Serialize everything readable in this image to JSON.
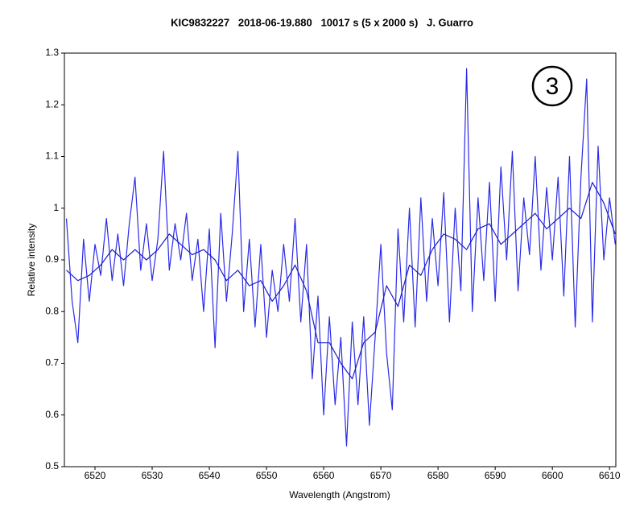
{
  "chart_data": {
    "type": "line",
    "title": "KIC9832227   2018-06-19.880   10017 s (5 x 2000 s)   J. Guarro",
    "x_label": "Wavelength (Angstrom)",
    "y_label": "Relative intensity",
    "annotation": "3",
    "xlim": [
      6514.65,
      6611.1
    ],
    "ylim": [
      0.5,
      1.3
    ],
    "xticks": [
      6520,
      6530,
      6540,
      6550,
      6560,
      6570,
      6580,
      6590,
      6600,
      6610
    ],
    "yticks": [
      0.5,
      0.6,
      0.7,
      0.8,
      0.9,
      1,
      1.1,
      1.2,
      1.3
    ],
    "grid": false,
    "series": [
      {
        "color": "#2a2ae8",
        "x": [
          6515,
          6516,
          6517,
          6518,
          6519,
          6520,
          6521,
          6522,
          6523,
          6524,
          6525,
          6526,
          6527,
          6528,
          6529,
          6530,
          6531,
          6532,
          6533,
          6534,
          6535,
          6536,
          6537,
          6538,
          6539,
          6540,
          6541,
          6542,
          6543,
          6544,
          6545,
          6546,
          6547,
          6548,
          6549,
          6550,
          6551,
          6552,
          6553,
          6554,
          6555,
          6556,
          6557,
          6558,
          6559,
          6560,
          6561,
          6562,
          6563,
          6564,
          6565,
          6566,
          6567,
          6568,
          6569,
          6570,
          6571,
          6572,
          6573,
          6574,
          6575,
          6576,
          6577,
          6578,
          6579,
          6580,
          6581,
          6582,
          6583,
          6584,
          6585,
          6586,
          6587,
          6588,
          6589,
          6590,
          6591,
          6592,
          6593,
          6594,
          6595,
          6596,
          6597,
          6598,
          6599,
          6600,
          6601,
          6602,
          6603,
          6604,
          6605,
          6606,
          6607,
          6608,
          6609,
          6610,
          6611
        ],
        "values": [
          0.98,
          0.82,
          0.74,
          0.94,
          0.82,
          0.93,
          0.87,
          0.98,
          0.86,
          0.95,
          0.85,
          0.97,
          1.06,
          0.88,
          0.97,
          0.86,
          0.94,
          1.11,
          0.88,
          0.97,
          0.9,
          0.99,
          0.86,
          0.94,
          0.8,
          0.96,
          0.73,
          0.99,
          0.82,
          0.95,
          1.11,
          0.8,
          0.94,
          0.77,
          0.93,
          0.75,
          0.88,
          0.8,
          0.93,
          0.82,
          0.98,
          0.78,
          0.93,
          0.67,
          0.83,
          0.6,
          0.79,
          0.62,
          0.75,
          0.54,
          0.78,
          0.62,
          0.79,
          0.58,
          0.75,
          0.93,
          0.72,
          0.61,
          0.96,
          0.78,
          1.0,
          0.77,
          1.02,
          0.82,
          0.98,
          0.85,
          1.03,
          0.78,
          1.0,
          0.84,
          1.27,
          0.8,
          1.02,
          0.86,
          1.05,
          0.82,
          1.08,
          0.9,
          1.11,
          0.84,
          1.02,
          0.91,
          1.1,
          0.88,
          1.04,
          0.9,
          1.06,
          0.83,
          1.1,
          0.77,
          1.06,
          1.25,
          0.78,
          1.12,
          0.9,
          1.02,
          0.93
        ]
      },
      {
        "color": "#1a1ad0",
        "x": [
          6515,
          6517,
          6519,
          6521,
          6523,
          6525,
          6527,
          6529,
          6531,
          6533,
          6535,
          6537,
          6539,
          6541,
          6543,
          6545,
          6547,
          6549,
          6551,
          6553,
          6555,
          6557,
          6559,
          6561,
          6563,
          6565,
          6567,
          6569,
          6571,
          6573,
          6575,
          6577,
          6579,
          6581,
          6583,
          6585,
          6587,
          6589,
          6591,
          6593,
          6595,
          6597,
          6599,
          6601,
          6603,
          6605,
          6607,
          6609,
          6611
        ],
        "values": [
          0.88,
          0.86,
          0.87,
          0.89,
          0.92,
          0.9,
          0.92,
          0.9,
          0.92,
          0.95,
          0.93,
          0.91,
          0.92,
          0.9,
          0.86,
          0.88,
          0.85,
          0.86,
          0.82,
          0.85,
          0.89,
          0.84,
          0.74,
          0.74,
          0.7,
          0.67,
          0.74,
          0.76,
          0.85,
          0.81,
          0.89,
          0.87,
          0.92,
          0.95,
          0.94,
          0.92,
          0.96,
          0.97,
          0.93,
          0.95,
          0.97,
          0.99,
          0.96,
          0.98,
          1.0,
          0.98,
          1.05,
          1.01,
          0.95
        ]
      }
    ]
  }
}
